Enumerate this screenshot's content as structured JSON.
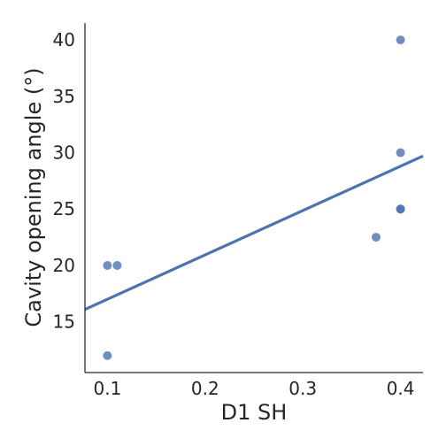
{
  "chart_data": {
    "type": "scatter",
    "title": "",
    "xlabel": "D1 SH",
    "ylabel": "Cavity opening angle (°)",
    "xlim": [
      0.077,
      0.423
    ],
    "ylim": [
      10.5,
      41.5
    ],
    "xticks": [
      0.1,
      0.2,
      0.3,
      0.4
    ],
    "yticks": [
      15,
      20,
      25,
      30,
      35,
      40
    ],
    "xtick_labels": [
      "0.1",
      "0.2",
      "0.3",
      "0.4"
    ],
    "ytick_labels": [
      "15",
      "20",
      "25",
      "30",
      "35",
      "40"
    ],
    "grid": false,
    "series": [
      {
        "points": [
          {
            "x": 0.1,
            "y": 20
          },
          {
            "x": 0.11,
            "y": 20
          },
          {
            "x": 0.1,
            "y": 12
          },
          {
            "x": 0.375,
            "y": 22.5
          },
          {
            "x": 0.4,
            "y": 25
          },
          {
            "x": 0.4,
            "y": 25
          },
          {
            "x": 0.4,
            "y": 30
          },
          {
            "x": 0.4,
            "y": 40
          }
        ],
        "color": "#4c72b0"
      }
    ],
    "regression_line": {
      "x": [
        0.077,
        0.423
      ],
      "y": [
        16.1,
        29.7
      ],
      "color": "#4c72b0"
    }
  }
}
